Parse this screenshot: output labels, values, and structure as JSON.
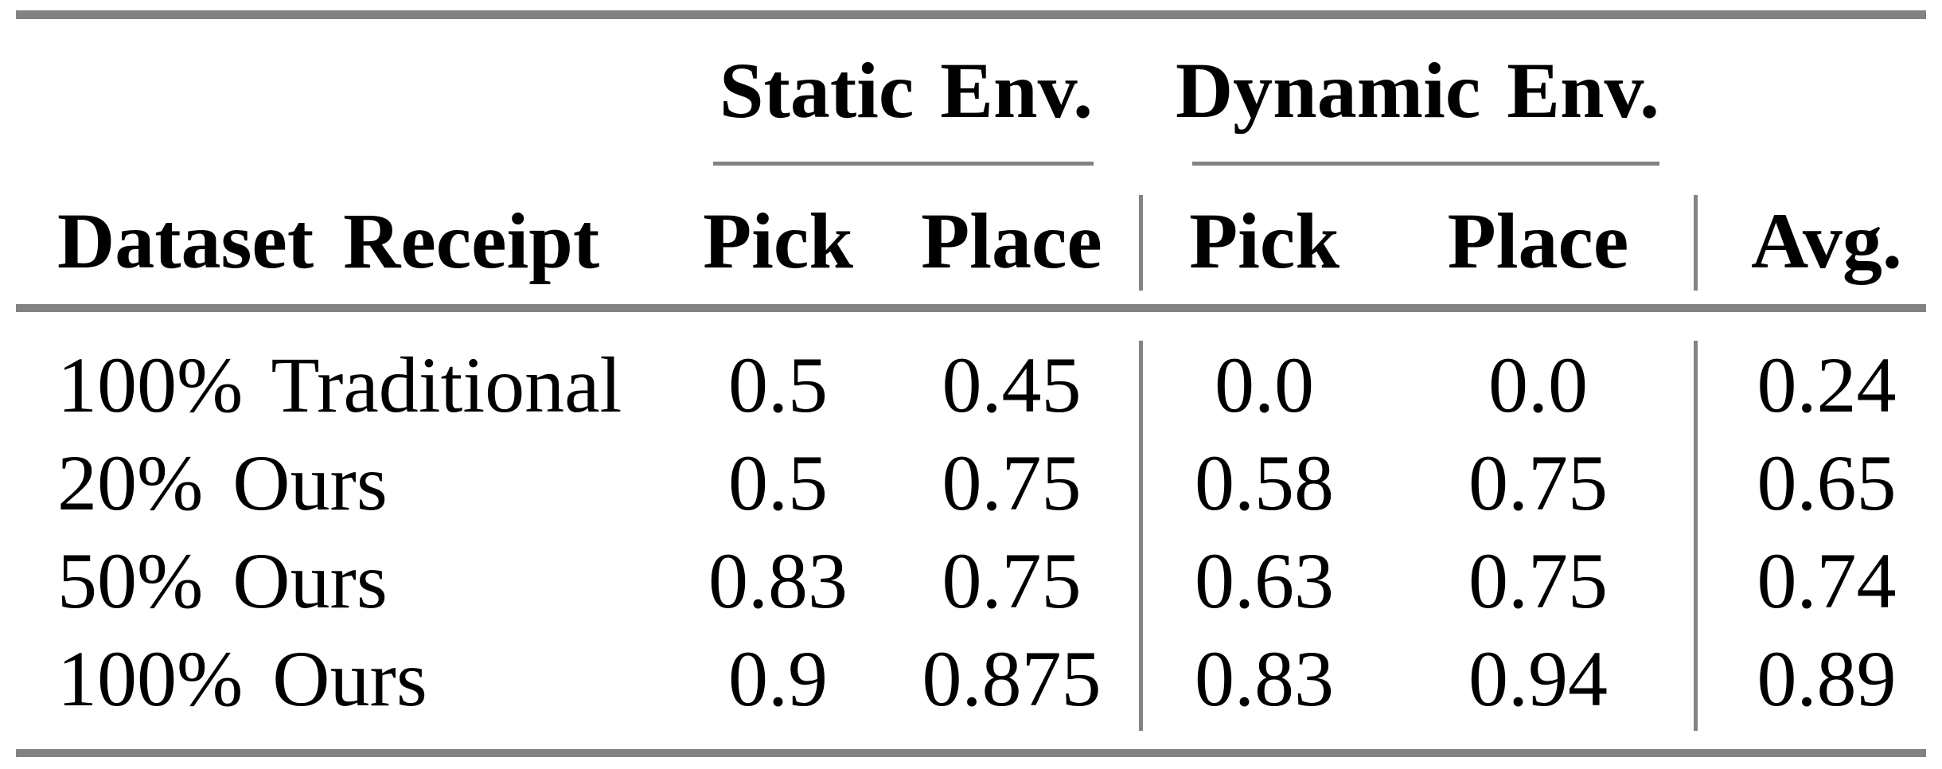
{
  "colors": {
    "background": "#ffffff",
    "text": "#000000",
    "rule_gray": "#828282"
  },
  "table": {
    "headers": {
      "row_header": "Dataset Receipt",
      "static_group": "Static Env.",
      "dynamic_group": "Dynamic Env.",
      "static_cols": [
        "Pick",
        "Place"
      ],
      "dynamic_cols": [
        "Pick",
        "Place"
      ],
      "avg": "Avg."
    },
    "rows": [
      {
        "label": "100% Traditional",
        "values": [
          "0.5",
          "0.45",
          "0.0",
          "0.0",
          "0.24"
        ]
      },
      {
        "label": "20% Ours",
        "values": [
          "0.5",
          "0.75",
          "0.58",
          "0.75",
          "0.65"
        ]
      },
      {
        "label": "50% Ours",
        "values": [
          "0.83",
          "0.75",
          "0.63",
          "0.75",
          "0.74"
        ]
      },
      {
        "label": "100% Ours",
        "values": [
          "0.9",
          "0.875",
          "0.83",
          "0.94",
          "0.89"
        ]
      }
    ]
  }
}
